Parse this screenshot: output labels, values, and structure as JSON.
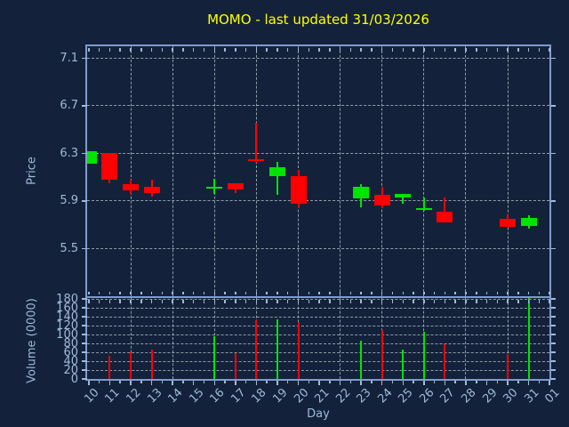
{
  "title": "MOMO - last updated 31/03/2026",
  "colors": {
    "background": "#13223a",
    "axis_border": "#7e9ccc",
    "grid": "#a8b0ba",
    "tick_label": "#9fbad9",
    "title": "#ffff00",
    "up": "#00e400",
    "down": "#ff0000"
  },
  "chart_data": {
    "type": "candlestick-with-volume-bars",
    "title": "MOMO - last updated 31/03/2026",
    "xlabel": "Day",
    "legend": "none",
    "grid": "dashed, on both panels",
    "x_categories": [
      "10",
      "11",
      "12",
      "13",
      "14",
      "15",
      "16",
      "17",
      "18",
      "19",
      "20",
      "21",
      "22",
      "23",
      "24",
      "25",
      "26",
      "27",
      "28",
      "29",
      "30",
      "31",
      "01"
    ],
    "grid_x_categories": [
      "12",
      "14",
      "16",
      "18",
      "20",
      "22",
      "24",
      "26",
      "28",
      "30"
    ],
    "price_panel": {
      "ylabel": "Price",
      "yticks": [
        5.5,
        5.9,
        6.3,
        6.7,
        7.1
      ],
      "ylim": [
        5.1,
        7.2
      ]
    },
    "volume_panel": {
      "ylabel": "Volume (0000)",
      "yticks": [
        0,
        20,
        40,
        60,
        80,
        100,
        120,
        140,
        160,
        180
      ],
      "ylim": [
        0,
        182
      ]
    },
    "series": [
      {
        "day": "10",
        "open": 6.21,
        "high": 6.32,
        "low": 6.21,
        "close": 6.32,
        "volume": 0
      },
      {
        "day": "11",
        "open": 6.3,
        "high": 6.3,
        "low": 6.05,
        "close": 6.08,
        "volume": 52
      },
      {
        "day": "12",
        "open": 6.04,
        "high": 6.08,
        "low": 5.96,
        "close": 5.99,
        "volume": 61
      },
      {
        "day": "13",
        "open": 6.02,
        "high": 6.08,
        "low": 5.94,
        "close": 5.97,
        "volume": 66
      },
      {
        "day": "16",
        "open": 6.02,
        "high": 6.09,
        "low": 5.96,
        "close": 6.02,
        "volume": 97
      },
      {
        "day": "17",
        "open": 6.05,
        "high": 6.05,
        "low": 5.97,
        "close": 6.0,
        "volume": 59
      },
      {
        "day": "18",
        "open": 6.25,
        "high": 6.56,
        "low": 6.22,
        "close": 6.24,
        "volume": 132
      },
      {
        "day": "19",
        "open": 6.11,
        "high": 6.23,
        "low": 5.95,
        "close": 6.18,
        "volume": 135
      },
      {
        "day": "20",
        "open": 6.11,
        "high": 6.16,
        "low": 5.84,
        "close": 5.88,
        "volume": 129
      },
      {
        "day": "23",
        "open": 5.92,
        "high": 6.04,
        "low": 5.85,
        "close": 6.02,
        "volume": 87
      },
      {
        "day": "24",
        "open": 5.95,
        "high": 6.02,
        "low": 5.84,
        "close": 5.86,
        "volume": 111
      },
      {
        "day": "25",
        "open": 5.93,
        "high": 5.96,
        "low": 5.88,
        "close": 5.96,
        "volume": 66
      },
      {
        "day": "26",
        "open": 5.84,
        "high": 5.93,
        "low": 5.82,
        "close": 5.84,
        "volume": 106
      },
      {
        "day": "27",
        "open": 5.81,
        "high": 5.93,
        "low": 5.72,
        "close": 5.72,
        "volume": 79
      },
      {
        "day": "30",
        "open": 5.75,
        "high": 5.79,
        "low": 5.68,
        "close": 5.68,
        "volume": 56
      },
      {
        "day": "31",
        "open": 5.69,
        "high": 5.78,
        "low": 5.67,
        "close": 5.76,
        "volume": 182
      }
    ]
  }
}
